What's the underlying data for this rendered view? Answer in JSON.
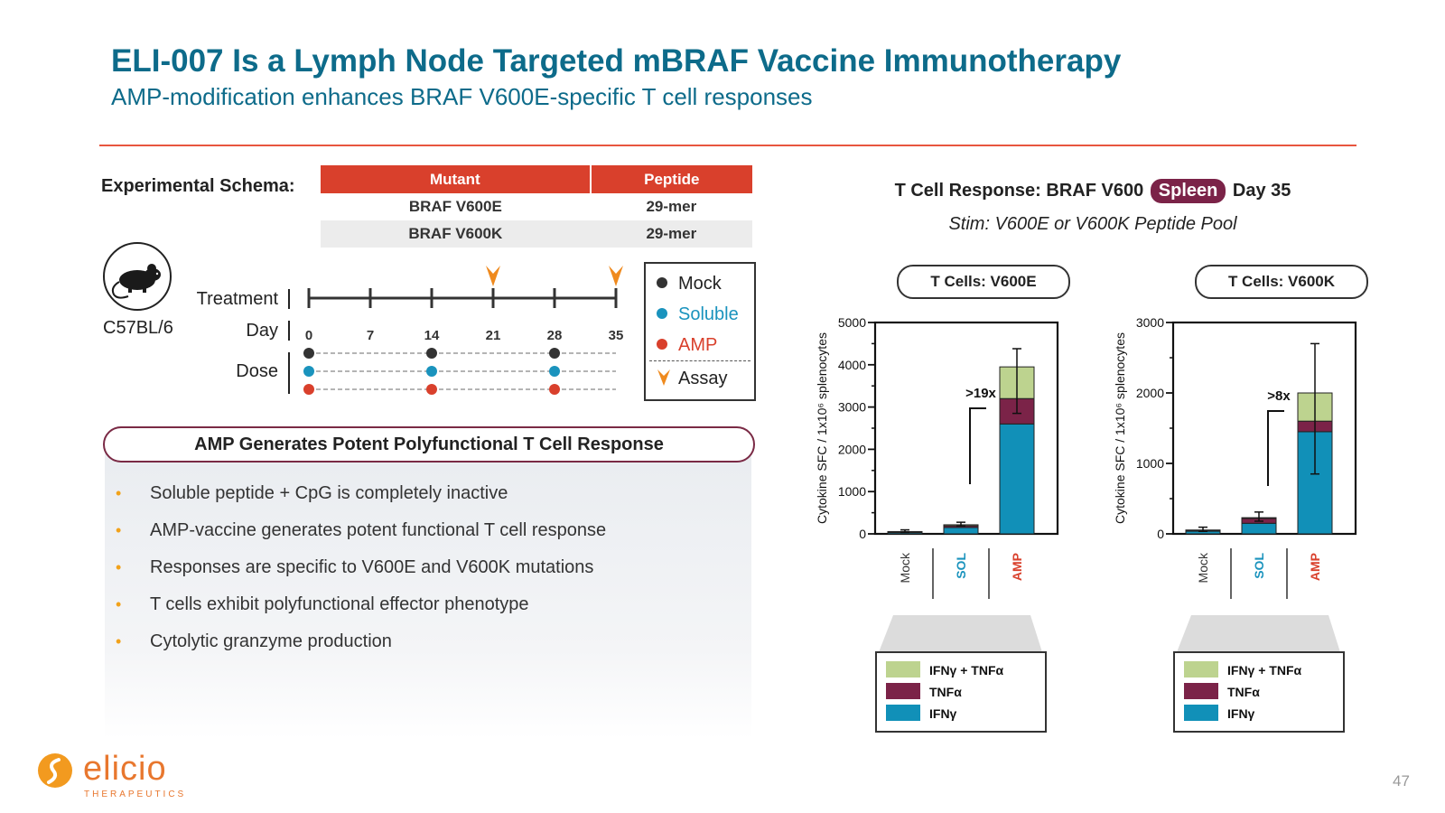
{
  "header": {
    "title": "ELI-007 Is a Lymph Node Targeted mBRAF Vaccine Immunotherapy",
    "subtitle": "AMP-modification enhances BRAF V600E-specific T cell responses"
  },
  "schema": {
    "label": "Experimental Schema:",
    "table": {
      "headers": [
        "Mutant",
        "Peptide"
      ],
      "rows": [
        [
          "BRAF V600E",
          "29-mer"
        ],
        [
          "BRAF V600K",
          "29-mer"
        ]
      ]
    },
    "strain": "C57BL/6",
    "timeline": {
      "treatment_label": "Treatment",
      "day_label": "Day",
      "dose_label": "Dose",
      "days": [
        "0",
        "7",
        "14",
        "21",
        "28",
        "35"
      ],
      "dose_days": [
        "0",
        "14",
        "28"
      ],
      "assay_days": [
        "21",
        "35"
      ]
    },
    "legend": {
      "mock": "Mock",
      "soluble": "Soluble",
      "amp": "AMP",
      "assay": "Assay"
    },
    "colors": {
      "mock": "#333333",
      "soluble": "#1a93bd",
      "amp": "#d9402c",
      "assay": "#ef8a1e"
    }
  },
  "findings": {
    "banner": "AMP Generates Potent Polyfunctional T Cell Response",
    "bullets": [
      "Soluble peptide + CpG is completely inactive",
      "AMP-vaccine generates potent functional T cell response",
      "Responses are specific to V600E and V600K mutations",
      "T cells exhibit polyfunctional effector phenotype",
      "Cytolytic granzyme production"
    ]
  },
  "chart_header": {
    "title_pre": "T Cell Response: BRAF V600",
    "badge": "Spleen",
    "title_post": "Day 35",
    "subtitle": "Stim: V600E or V600K Peptide Pool"
  },
  "chart_data": [
    {
      "type": "bar",
      "stacked": true,
      "title": "T Cells: V600E",
      "ylabel": "Cytokine SFC / 1x10⁶ splenocytes",
      "ylim": [
        0,
        5000
      ],
      "yticks": [
        0,
        1000,
        2000,
        3000,
        4000,
        5000
      ],
      "categories": [
        "Mock",
        "SOL",
        "AMP"
      ],
      "category_colors": [
        "#333333",
        "#1a93bd",
        "#d9402c"
      ],
      "series": [
        {
          "name": "IFNγ",
          "color": "#1190b8",
          "values": [
            40,
            150,
            2600
          ]
        },
        {
          "name": "TNFα",
          "color": "#7b2348",
          "values": [
            10,
            40,
            600
          ]
        },
        {
          "name": "IFNγ + TNFα",
          "color": "#bdd38f",
          "values": [
            5,
            25,
            750
          ]
        }
      ],
      "error_bars": [
        [
          20,
          40
        ],
        [
          30,
          60
        ],
        [
          1100,
          430
        ]
      ],
      "annotation": ">19x",
      "legend_position": "below"
    },
    {
      "type": "bar",
      "stacked": true,
      "title": "T Cells: V600K",
      "ylabel": "Cytokine SFC / 1x10⁶ splenocytes",
      "ylim": [
        0,
        3000
      ],
      "yticks": [
        0,
        1000,
        2000,
        3000
      ],
      "categories": [
        "Mock",
        "SOL",
        "AMP"
      ],
      "category_colors": [
        "#333333",
        "#1a93bd",
        "#d9402c"
      ],
      "series": [
        {
          "name": "IFNγ",
          "color": "#1190b8",
          "values": [
            40,
            150,
            1450
          ]
        },
        {
          "name": "TNFα",
          "color": "#7b2348",
          "values": [
            10,
            70,
            150
          ]
        },
        {
          "name": "IFNγ + TNFα",
          "color": "#bdd38f",
          "values": [
            5,
            10,
            400
          ]
        }
      ],
      "error_bars": [
        [
          20,
          40
        ],
        [
          50,
          80
        ],
        [
          1150,
          700
        ]
      ],
      "annotation": ">8x",
      "legend_position": "below"
    }
  ],
  "footer": {
    "page_number": "47",
    "logo_word": "elicio",
    "logo_sub": "THERAPEUTICS"
  }
}
